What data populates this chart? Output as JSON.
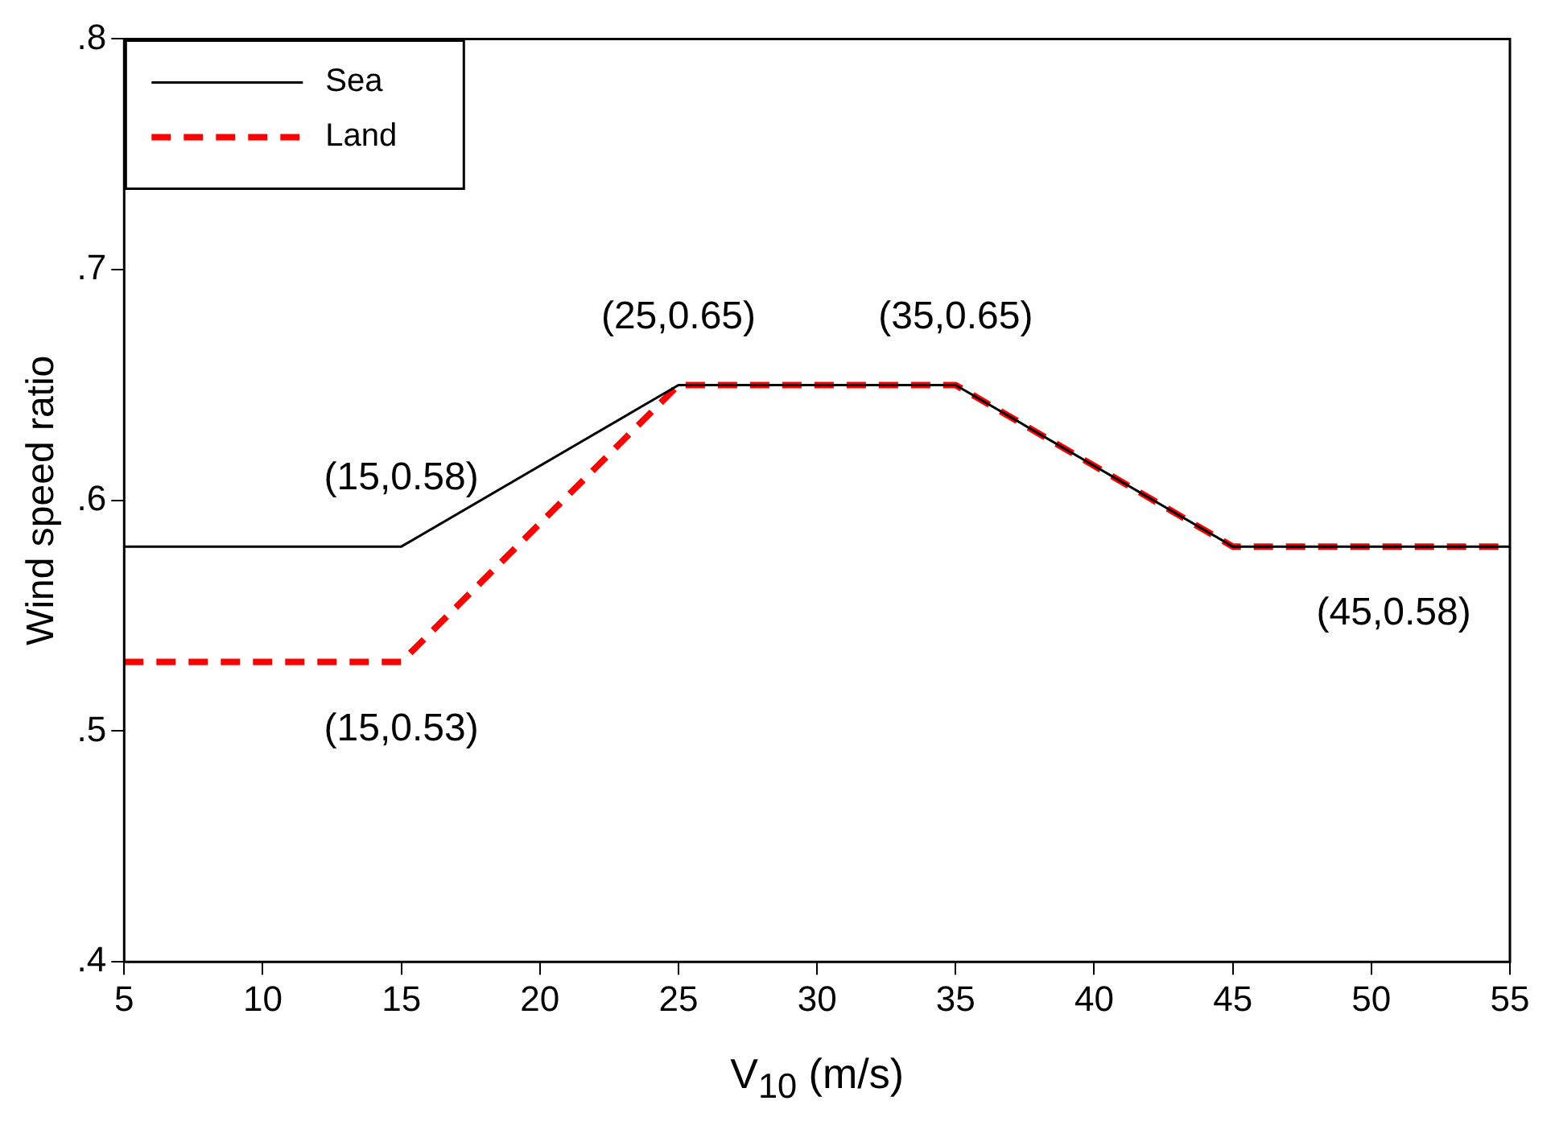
{
  "chart_data": {
    "type": "line",
    "xlabel": "V$_{10}$ (m/s)",
    "ylabel": "Wind speed ratio",
    "x": [
      5,
      15,
      25,
      35,
      45,
      55
    ],
    "series": [
      {
        "name": "Sea",
        "color": "#000000",
        "line_style": "solid",
        "values": [
          0.58,
          0.58,
          0.65,
          0.65,
          0.58,
          0.58
        ]
      },
      {
        "name": "Land",
        "color": "#ff0000",
        "line_style": "dashed",
        "values": [
          0.53,
          0.53,
          0.65,
          0.65,
          0.58,
          0.58
        ]
      }
    ],
    "xlim": [
      5,
      55
    ],
    "xticks": [
      5,
      10,
      15,
      20,
      25,
      30,
      35,
      40,
      45,
      50,
      55
    ],
    "ylim": [
      0.4,
      0.8
    ],
    "yticks": [
      {
        "value": 0.4,
        "label": ".4"
      },
      {
        "value": 0.5,
        "label": ".5"
      },
      {
        "value": 0.6,
        "label": ".6"
      },
      {
        "value": 0.7,
        "label": ".7"
      },
      {
        "value": 0.8,
        "label": ".8"
      }
    ],
    "annotations": [
      {
        "text": "(15,0.58)",
        "x": 15,
        "y": 0.58
      },
      {
        "text": "(15,0.53)",
        "x": 15,
        "y": 0.53
      },
      {
        "text": "(25,0.65)",
        "x": 25,
        "y": 0.65
      },
      {
        "text": "(35,0.65)",
        "x": 35,
        "y": 0.65
      },
      {
        "text": "(45,0.58)",
        "x": 45,
        "y": 0.58
      }
    ],
    "grid": false,
    "legend": "top left",
    "marker": "none"
  }
}
